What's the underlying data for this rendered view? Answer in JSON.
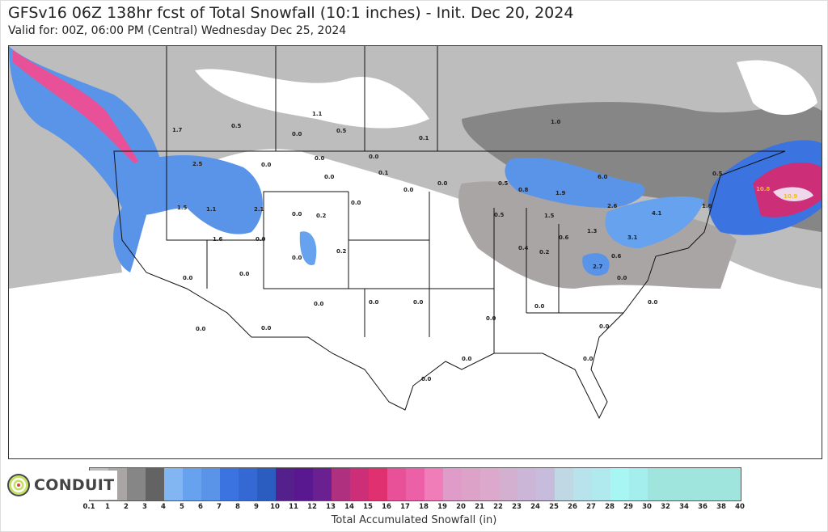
{
  "header": {
    "title": "GFSv16 06Z 138hr fcst of Total Snowfall (10:1 inches) - Init. Dec 20, 2024",
    "subtitle": "Valid for: 00Z, 06:00 PM (Central) Wednesday Dec 25, 2024"
  },
  "map": {
    "labels": [
      "1.7",
      "0.5",
      "1.1",
      "0.0",
      "0.5",
      "1.0",
      "0.1",
      "2.5",
      "0.0",
      "0.0",
      "0.0",
      "0.1",
      "0.0",
      "0.0",
      "0.0",
      "1.5",
      "1.1",
      "2.1",
      "0.0",
      "0.2",
      "0.0",
      "1.6",
      "0.0",
      "0.2",
      "0.0",
      "0.0",
      "0.0",
      "0.0",
      "0.0",
      "0.0",
      "0.0",
      "0.0",
      "0.0",
      "0.0",
      "0.0",
      "0.0",
      "0.0",
      "0.0",
      "0.5",
      "0.5",
      "1.5",
      "0.4",
      "0.2",
      "0.6",
      "1.3",
      "2.7",
      "3.1",
      "4.1",
      "6.0",
      "1.9",
      "10.8",
      "10.9",
      "0.0",
      "0.0",
      "0.8",
      "0.6",
      "2.6",
      "1.6",
      "0.5"
    ]
  },
  "colorbar": {
    "title": "Total Accumulated Snowfall (in)",
    "ticks": [
      "0.1",
      "1",
      "2",
      "3",
      "4",
      "5",
      "6",
      "7",
      "8",
      "9",
      "10",
      "11",
      "12",
      "13",
      "14",
      "15",
      "16",
      "17",
      "18",
      "19",
      "20",
      "21",
      "22",
      "23",
      "24",
      "25",
      "26",
      "27",
      "28",
      "29",
      "30",
      "32",
      "34",
      "36",
      "38",
      "40"
    ],
    "colors": [
      "#bdbdbd",
      "#a9a5a5",
      "#868686",
      "#636363",
      "#82b6f2",
      "#66a2ee",
      "#5a94e8",
      "#3b74e0",
      "#3468d2",
      "#2b5cc0",
      "#54208c",
      "#5a1890",
      "#6a2090",
      "#b03080",
      "#cc2e78",
      "#e03070",
      "#e85098",
      "#ec60a8",
      "#f07cb8",
      "#e09cc8",
      "#dca2c8",
      "#dca8cc",
      "#d4b0d0",
      "#ccb6d8",
      "#c8bcdc",
      "#c0d8e4",
      "#b8e2ec",
      "#b0eaee",
      "#a8f6f4",
      "#a4eeee",
      "#a0e4de",
      "#a0e4de",
      "#a0e4de",
      "#a0e4de",
      "#a0e4de"
    ]
  },
  "logo": {
    "text": "CONDUIT"
  }
}
